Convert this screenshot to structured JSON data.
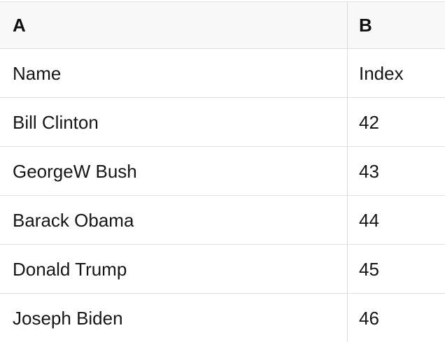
{
  "table": {
    "columns": [
      {
        "id": "A",
        "label": "A"
      },
      {
        "id": "B",
        "label": "B"
      }
    ],
    "rows": [
      {
        "a": "Name",
        "b": "Index"
      },
      {
        "a": "Bill Clinton",
        "b": "42"
      },
      {
        "a": "GeorgeW Bush",
        "b": "43"
      },
      {
        "a": "Barack Obama",
        "b": "44"
      },
      {
        "a": "Donald Trump",
        "b": "45"
      },
      {
        "a": "Joseph Biden",
        "b": "46"
      }
    ]
  },
  "colors": {
    "header_background": "#f8f8f8",
    "row_background": "#ffffff",
    "horizontal_divider": "#e0e0e0",
    "vertical_divider": "#d9d9d9",
    "text": "#161616"
  }
}
